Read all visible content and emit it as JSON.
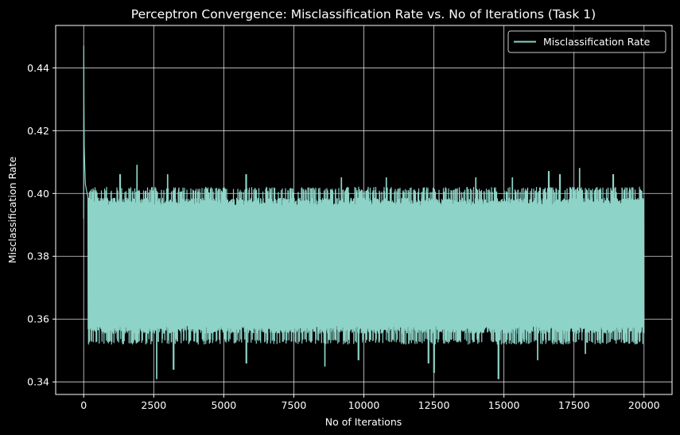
{
  "chart_data": {
    "type": "line",
    "title": "Perceptron Convergence: Misclassification Rate vs. No of Iterations (Task 1)",
    "xlabel": "No of Iterations",
    "ylabel": "Misclassification Rate",
    "xlim": [
      -1000,
      21000
    ],
    "ylim": [
      0.336,
      0.4535
    ],
    "x_ticks": [
      0,
      2500,
      5000,
      7500,
      10000,
      12500,
      15000,
      17500,
      20000
    ],
    "x_tick_labels": [
      "0",
      "2500",
      "5000",
      "7500",
      "10000",
      "12500",
      "15000",
      "17500",
      "20000"
    ],
    "y_ticks": [
      0.34,
      0.36,
      0.38,
      0.4,
      0.42,
      0.44
    ],
    "y_tick_labels": [
      "0.34",
      "0.36",
      "0.38",
      "0.40",
      "0.42",
      "0.44"
    ],
    "grid": true,
    "legend_position": "top-right",
    "background_color": "#000000",
    "foreground_color": "#ffffff",
    "series": [
      {
        "name": "Misclassification Rate",
        "color": "#8dd3c7",
        "x_range": [
          0,
          20000
        ],
        "initial_points": [
          [
            0,
            0.392
          ],
          [
            4,
            0.447
          ],
          [
            10,
            0.428
          ],
          [
            20,
            0.415
          ],
          [
            40,
            0.408
          ],
          [
            60,
            0.403
          ],
          [
            100,
            0.401
          ],
          [
            150,
            0.399
          ]
        ],
        "band_low": 0.352,
        "band_high": 0.402,
        "dense_core": [
          0.358,
          0.396
        ],
        "peaks": [
          [
            1300,
            0.406
          ],
          [
            1900,
            0.409
          ],
          [
            3000,
            0.406
          ],
          [
            5800,
            0.406
          ],
          [
            9200,
            0.405
          ],
          [
            10800,
            0.405
          ],
          [
            14000,
            0.405
          ],
          [
            15300,
            0.405
          ],
          [
            16600,
            0.407
          ],
          [
            17000,
            0.406
          ],
          [
            17700,
            0.408
          ],
          [
            18900,
            0.406
          ]
        ],
        "troughs": [
          [
            2600,
            0.341
          ],
          [
            3200,
            0.344
          ],
          [
            5800,
            0.346
          ],
          [
            8600,
            0.345
          ],
          [
            9800,
            0.347
          ],
          [
            12300,
            0.346
          ],
          [
            12500,
            0.343
          ],
          [
            14800,
            0.341
          ],
          [
            16200,
            0.347
          ],
          [
            17900,
            0.349
          ]
        ]
      }
    ]
  }
}
